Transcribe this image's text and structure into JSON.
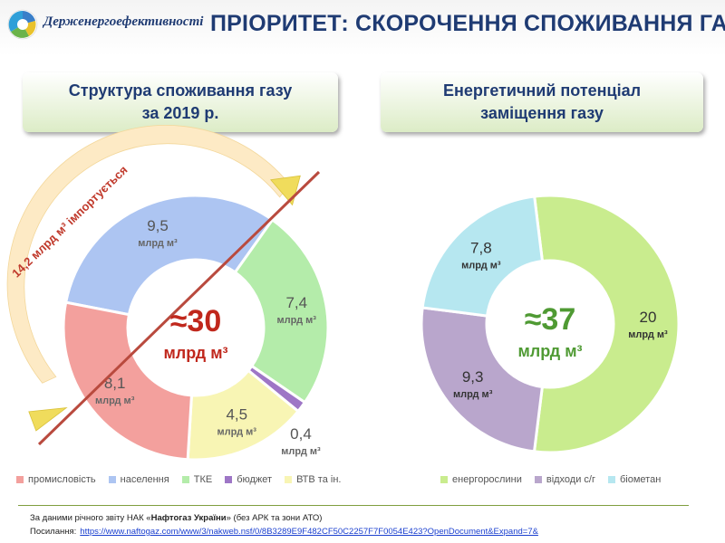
{
  "header": {
    "org_name": "Держенергоефективності",
    "title": "ПРІОРИТЕТ: СКОРОЧЕННЯ СПОЖИВАННЯ ГАЗУ"
  },
  "chart_data": [
    {
      "type": "pie",
      "variant": "donut",
      "title": [
        "Структура споживання газу",
        "за 2019 р."
      ],
      "center_value": "≈30",
      "center_unit": "млрд м³",
      "unit": "млрд м³",
      "categories": [
        "населення",
        "ТКЕ",
        "бюджет",
        "ВТВ та ін.",
        "промисловість"
      ],
      "values": [
        9.5,
        7.4,
        0.4,
        4.5,
        8.1
      ],
      "value_labels": [
        "9,5",
        "7,4",
        "0,4",
        "4,5",
        "8,1"
      ],
      "colors": [
        "#adc5f2",
        "#b4ecaa",
        "#9e76c6",
        "#f8f5b4",
        "#f3a09d"
      ],
      "annotation": "14,2 млрд м³ імпортується",
      "legend": {
        "placement": "bottom",
        "items": [
          "промисловість",
          "населення",
          "ТКЕ",
          "бюджет",
          "ВТВ та ін."
        ],
        "colors": [
          "#f3a09d",
          "#adc5f2",
          "#b4ecaa",
          "#9e76c6",
          "#f8f5b4"
        ]
      }
    },
    {
      "type": "pie",
      "variant": "donut",
      "title": [
        "Енергетичний потенціал",
        "заміщення газу"
      ],
      "center_value": "≈37",
      "center_unit": "млрд м³",
      "unit": "млрд м³",
      "categories": [
        "енергорослини",
        "відходи с/г",
        "біометан"
      ],
      "values": [
        20,
        9.3,
        7.8
      ],
      "value_labels": [
        "20",
        "9,3",
        "7,8"
      ],
      "colors": [
        "#c9ec8e",
        "#b9a6cc",
        "#b6e7f0"
      ],
      "legend": {
        "placement": "bottom",
        "items": [
          "енергорослини",
          "відходи с/г",
          "біометан"
        ],
        "colors": [
          "#c9ec8e",
          "#b9a6cc",
          "#b6e7f0"
        ]
      }
    }
  ],
  "footer": {
    "source_prefix": "За даними річного звіту НАК «",
    "source_name": "Нафтогаз України",
    "source_suffix": "» (без АРК та зони АТО)",
    "link_label": "Посилання:",
    "link_url": "https://www.naftogaz.com/www/3/nakweb.nsf/0/8B3289E9F482CF50C2257F7F0054E423?OpenDocument&Expand=7&"
  }
}
